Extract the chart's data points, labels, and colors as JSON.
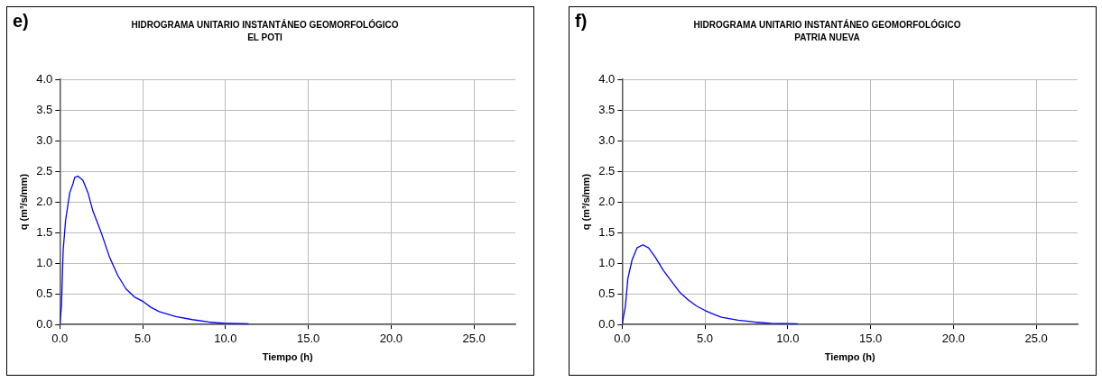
{
  "chart_data": [
    {
      "type": "line",
      "title": "HIDROGRAMA UNITARIO INSTANTÁNEO GEOMORFOLÓGICO",
      "subtitle": "EL POTI",
      "xlabel": "Tiempo (h)",
      "ylabel": "q (m³/s/mm)",
      "annotations": [
        "e)"
      ],
      "x": [
        0,
        0.1,
        0.2,
        0.35,
        0.6,
        0.8,
        0.9,
        1.1,
        1.4,
        1.7,
        2.0,
        2.5,
        3.0,
        3.5,
        4.0,
        4.5,
        5.0,
        5.5,
        6.0,
        7.0,
        8.0,
        9.0,
        10.0,
        11.4
      ],
      "series": [
        {
          "color": "#0000ff",
          "values": [
            0,
            0.3,
            1.2,
            1.7,
            2.15,
            2.3,
            2.4,
            2.42,
            2.35,
            2.15,
            1.85,
            1.5,
            1.1,
            0.8,
            0.58,
            0.45,
            0.38,
            0.28,
            0.21,
            0.13,
            0.08,
            0.04,
            0.02,
            0.01
          ]
        }
      ],
      "xlim": [
        0,
        27.5
      ],
      "xticks": [
        {
          "value": 0,
          "label": "0.0"
        },
        {
          "value": 5,
          "label": "5.0"
        },
        {
          "value": 10,
          "label": "10.0"
        },
        {
          "value": 15,
          "label": "15.0"
        },
        {
          "value": 20,
          "label": "20.0"
        },
        {
          "value": 25,
          "label": "25.0"
        }
      ],
      "ylim": [
        0,
        4
      ],
      "yticks": [
        {
          "value": 0,
          "label": "0.0"
        },
        {
          "value": 0.5,
          "label": "0.5"
        },
        {
          "value": 1,
          "label": "1.0"
        },
        {
          "value": 1.5,
          "label": "1.5"
        },
        {
          "value": 2,
          "label": "2.0"
        },
        {
          "value": 2.5,
          "label": "2.5"
        },
        {
          "value": 3,
          "label": "3.0"
        },
        {
          "value": 3.5,
          "label": "3.5"
        },
        {
          "value": 4,
          "label": "4.0"
        }
      ],
      "grid": true,
      "marker": "none",
      "line_style": "solid"
    },
    {
      "type": "line",
      "title": "HIDROGRAMA UNITARIO INSTANTÁNEO GEOMORFOLÓGICO",
      "subtitle": "PATRIA NUEVA",
      "xlabel": "Tiempo (h)",
      "ylabel": "q (m³/s/mm)",
      "annotations": [
        "f)"
      ],
      "x": [
        0,
        0.2,
        0.35,
        0.6,
        0.9,
        1.25,
        1.6,
        2.0,
        2.5,
        3.0,
        3.5,
        4.0,
        4.5,
        5.0,
        5.5,
        6.0,
        7.0,
        8.0,
        9.0,
        10.6
      ],
      "series": [
        {
          "color": "#0000ff",
          "values": [
            0,
            0.3,
            0.75,
            1.05,
            1.25,
            1.3,
            1.25,
            1.1,
            0.88,
            0.7,
            0.52,
            0.4,
            0.3,
            0.23,
            0.17,
            0.12,
            0.07,
            0.04,
            0.02,
            0.01
          ]
        }
      ],
      "xlim": [
        0,
        27.5
      ],
      "xticks": [
        {
          "value": 0,
          "label": "0.0"
        },
        {
          "value": 5,
          "label": "5.0"
        },
        {
          "value": 10,
          "label": "10.0"
        },
        {
          "value": 15,
          "label": "15.0"
        },
        {
          "value": 20,
          "label": "20.0"
        },
        {
          "value": 25,
          "label": "25.0"
        }
      ],
      "ylim": [
        0,
        4
      ],
      "yticks": [
        {
          "value": 0,
          "label": "0.0"
        },
        {
          "value": 0.5,
          "label": "0.5"
        },
        {
          "value": 1,
          "label": "1.0"
        },
        {
          "value": 1.5,
          "label": "1.5"
        },
        {
          "value": 2,
          "label": "2.0"
        },
        {
          "value": 2.5,
          "label": "2.5"
        },
        {
          "value": 3,
          "label": "3.0"
        },
        {
          "value": 3.5,
          "label": "3.5"
        },
        {
          "value": 4,
          "label": "4.0"
        }
      ],
      "grid": true,
      "marker": "none",
      "line_style": "solid"
    }
  ]
}
